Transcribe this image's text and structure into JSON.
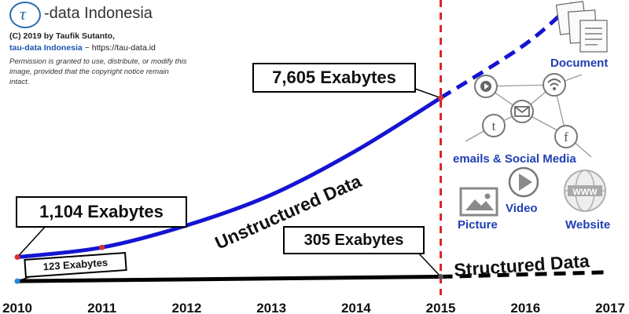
{
  "brand": {
    "logo_glyph": "τ",
    "name": "-data Indonesia",
    "copyright": "(C) 2019 by Taufik Sutanto,",
    "site_name": "tau-data Indonesia",
    "site_url": "~ https://tau-data.id",
    "permission": "Permission is granted to use, distribute, or modify this image, provided that the copyright notice remain intact."
  },
  "chart_data": {
    "type": "line",
    "x_ticks": [
      "2010",
      "2011",
      "2012",
      "2013",
      "2014",
      "2015",
      "2016",
      "2017"
    ],
    "xlim": [
      2010,
      2017
    ],
    "ylim": [
      0,
      11600
    ],
    "grid": false,
    "forecast_start": 2015,
    "series": [
      {
        "name": "Unstructured Data",
        "color": "#1414d2",
        "points": [
          [
            2010,
            1104
          ],
          [
            2011,
            1500
          ],
          [
            2012,
            2400
          ],
          [
            2013,
            3650
          ],
          [
            2014,
            5450
          ],
          [
            2015,
            7605
          ]
        ],
        "forecast": [
          [
            2015,
            7605
          ],
          [
            2016,
            9800
          ],
          [
            2016.6,
            11600
          ]
        ]
      },
      {
        "name": "Structured Data",
        "color": "#000000",
        "points": [
          [
            2010,
            123
          ],
          [
            2015,
            305
          ]
        ],
        "forecast": [
          [
            2015,
            305
          ],
          [
            2017,
            490
          ]
        ]
      }
    ],
    "annotations": [
      {
        "text": "7,605 Exabytes",
        "x": 2015,
        "y": 7605
      },
      {
        "text": "1,104 Exabytes",
        "x": 2010,
        "y": 1104
      },
      {
        "text": "305 Exabytes",
        "x": 2015,
        "y": 305
      },
      {
        "text": "123 Exabytes",
        "x": 2010,
        "y": 123
      }
    ]
  },
  "icons": {
    "document": "Document",
    "emails_social": "emails & Social Media",
    "picture": "Picture",
    "video": "Video",
    "website": "Website",
    "www_badge": "WWW",
    "twitter_glyph": "t",
    "facebook_glyph": "f"
  },
  "colors": {
    "unstructured": "#1414d2",
    "structured": "#000000",
    "divider": "#e02020",
    "icon_label": "#1f3fb3",
    "icon_gray": "#8a8a8a"
  }
}
